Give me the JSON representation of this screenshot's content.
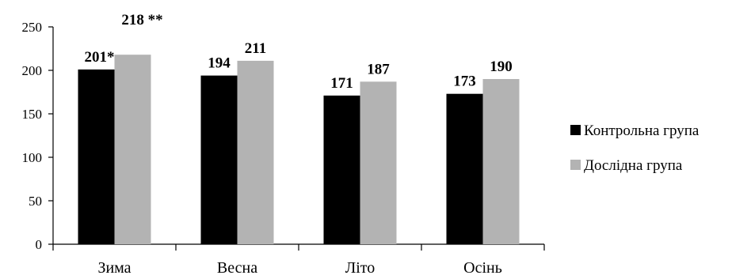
{
  "chart_data": {
    "type": "bar",
    "categories": [
      "Зима",
      "Весна",
      "Літо",
      "Осінь"
    ],
    "series": [
      {
        "name": "Контрольна група",
        "values": [
          201,
          194,
          171,
          173
        ],
        "labels": [
          "201*",
          "194",
          "171",
          "173"
        ],
        "color": "#000000"
      },
      {
        "name": "Дослідна  група",
        "values": [
          218,
          211,
          187,
          190
        ],
        "labels": [
          "218 **",
          "211",
          "187",
          "190"
        ],
        "color": "#b3b3b3"
      }
    ],
    "ylim": [
      0,
      250
    ],
    "yticks": [
      0,
      50,
      100,
      150,
      200,
      250
    ],
    "legend_position": "right",
    "grid": false
  }
}
